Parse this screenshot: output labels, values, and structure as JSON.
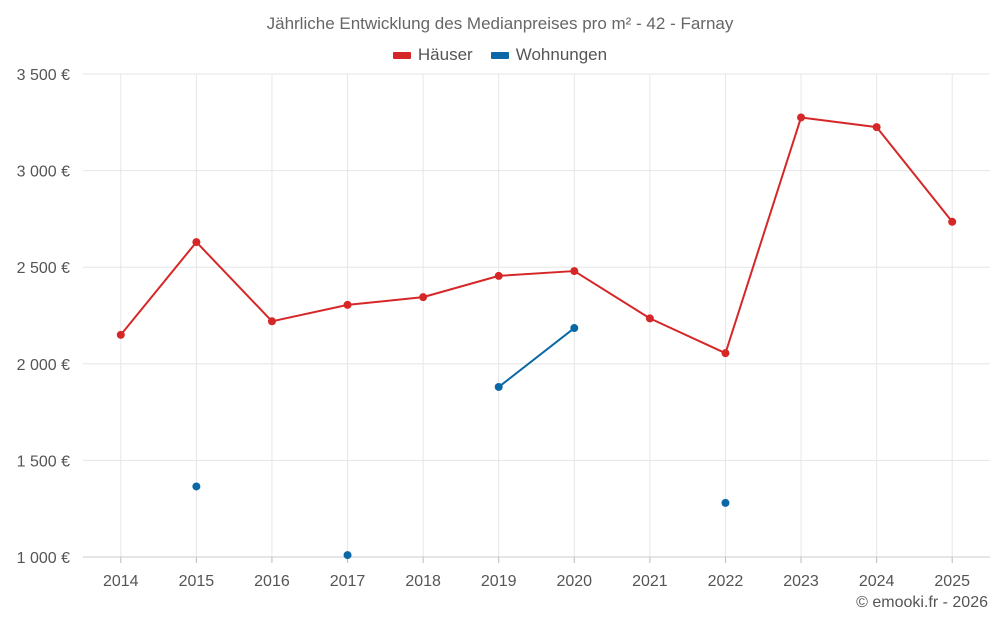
{
  "colors": {
    "houses": "#d62728",
    "apartments": "#0a68a6",
    "grid": "#e6e6e6",
    "axis_text": "#555555"
  },
  "chart_data": {
    "type": "line",
    "title": "Jährliche Entwicklung des Medianpreises pro m² - 42 - Farnay",
    "categories": [
      "2014",
      "2015",
      "2016",
      "2017",
      "2018",
      "2019",
      "2020",
      "2021",
      "2022",
      "2023",
      "2024",
      "2025"
    ],
    "y_tick_labels": [
      "1 000 €",
      "1 500 €",
      "2 000 €",
      "2 500 €",
      "3 000 €",
      "3 500 €"
    ],
    "y_tick_values": [
      1000,
      1500,
      2000,
      2500,
      3000,
      3500
    ],
    "ylim": [
      1000,
      3500
    ],
    "grid": true,
    "legend_position": "top-center",
    "series": [
      {
        "name": "Häuser",
        "color": "#d62728",
        "values": [
          2150,
          2630,
          2220,
          2305,
          2345,
          2455,
          2480,
          2235,
          2055,
          3275,
          3225,
          2735
        ]
      },
      {
        "name": "Wohnungen",
        "color": "#0a68a6",
        "values": [
          null,
          1365,
          null,
          1010,
          null,
          1880,
          2185,
          null,
          1280,
          null,
          null,
          null
        ]
      }
    ]
  },
  "footer": {
    "copyright": "© emooki.fr - 2026"
  }
}
